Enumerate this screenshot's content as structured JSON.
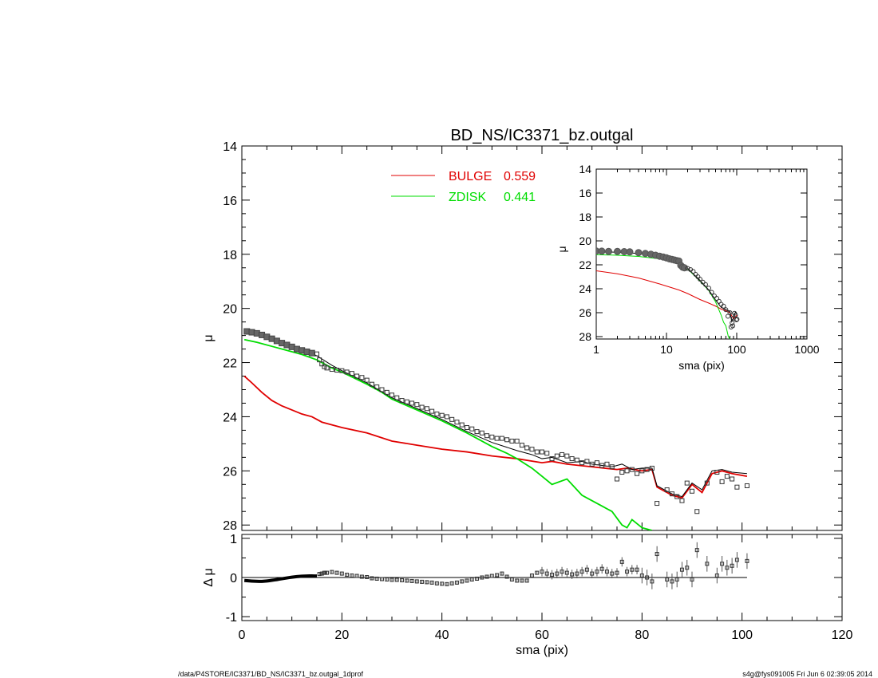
{
  "title": "BD_NS/IC3371_bz.outgal",
  "footer_left": "/data/P4STORE/IC3371/BD_NS/IC3371_bz.outgal_1dprof",
  "footer_right": "s4g@fys091005  Fri Jun  6 02:39:05 2014",
  "chart_data": [
    {
      "id": "main",
      "type": "line",
      "title": "BD_NS/IC3371_bz.outgal",
      "xlabel": "",
      "ylabel": "μ",
      "xlim": [
        0,
        120
      ],
      "ylim": [
        28.2,
        14
      ],
      "y_inverted": true,
      "xticks": [
        0,
        20,
        40,
        60,
        80,
        100,
        120
      ],
      "yticks": [
        14,
        16,
        18,
        20,
        22,
        24,
        26,
        28
      ],
      "legend": {
        "placement": "top-center",
        "entries": [
          {
            "label": "BULGE",
            "value": "0.559",
            "color": "#e00000"
          },
          {
            "label": "ZDISK",
            "value": "0.441",
            "color": "#00dd00"
          }
        ]
      },
      "series": [
        {
          "name": "BULGE",
          "kind": "line",
          "color": "#e00000",
          "x": [
            0.5,
            2,
            4,
            6,
            8,
            10,
            12,
            14,
            15,
            16,
            18,
            20,
            25,
            30,
            35,
            40,
            45,
            50,
            55,
            60,
            62,
            65,
            70,
            75,
            77,
            80,
            82,
            83,
            85,
            86,
            88,
            90,
            92,
            94,
            96,
            98,
            101
          ],
          "y": [
            22.5,
            22.75,
            23.1,
            23.4,
            23.6,
            23.75,
            23.9,
            24.0,
            24.1,
            24.2,
            24.3,
            24.4,
            24.6,
            24.9,
            25.05,
            25.2,
            25.3,
            25.45,
            25.55,
            25.7,
            25.65,
            25.75,
            25.85,
            25.95,
            25.9,
            26.0,
            25.95,
            26.6,
            26.8,
            26.9,
            27.0,
            26.5,
            26.8,
            26.1,
            26.0,
            26.1,
            26.2
          ]
        },
        {
          "name": "ZDISK",
          "kind": "line",
          "color": "#00dd00",
          "x": [
            0.5,
            3,
            6,
            9,
            12,
            15,
            18,
            20,
            25,
            28,
            30,
            35,
            40,
            45,
            50,
            53,
            55,
            58,
            60,
            62,
            65,
            68,
            70,
            72,
            74,
            76,
            77,
            78,
            80,
            82
          ],
          "y": [
            21.15,
            21.25,
            21.4,
            21.55,
            21.7,
            21.9,
            22.2,
            22.35,
            22.8,
            23.1,
            23.35,
            23.75,
            24.15,
            24.6,
            25.1,
            25.35,
            25.55,
            25.9,
            26.2,
            26.5,
            26.3,
            26.9,
            27.1,
            27.3,
            27.5,
            28.0,
            28.1,
            27.8,
            28.1,
            28.2
          ]
        },
        {
          "name": "",
          "kind": "line",
          "color": "#000000",
          "x": [
            0.5,
            3,
            6,
            9,
            12,
            15,
            18,
            20,
            25,
            30,
            35,
            40,
            45,
            50,
            55,
            58,
            60,
            62,
            65,
            68,
            70,
            72,
            74,
            76,
            78,
            80,
            82,
            83,
            85,
            86,
            88,
            90,
            92,
            94,
            96,
            98,
            101
          ],
          "y": [
            20.9,
            21.0,
            21.1,
            21.3,
            21.5,
            21.75,
            22.1,
            22.3,
            22.75,
            23.3,
            23.7,
            24.1,
            24.55,
            24.95,
            25.25,
            25.4,
            25.55,
            25.5,
            25.7,
            25.65,
            25.75,
            25.8,
            25.85,
            25.75,
            25.95,
            25.9,
            25.9,
            26.55,
            26.75,
            26.85,
            26.95,
            26.45,
            26.7,
            26.0,
            25.95,
            26.05,
            26.1
          ]
        },
        {
          "name": "",
          "kind": "points",
          "color": "#000000",
          "x": [
            1,
            2,
            3,
            4,
            5,
            6,
            7,
            8,
            9,
            10,
            11,
            12,
            13,
            14,
            15,
            15.5,
            16,
            16.5,
            17,
            18,
            19,
            20,
            21,
            22,
            23,
            24,
            25,
            26,
            27,
            28,
            29,
            30,
            31,
            32,
            33,
            34,
            35,
            36,
            37,
            38,
            39,
            40,
            41,
            42,
            43,
            44,
            45,
            46,
            47,
            48,
            49,
            50,
            51,
            52,
            53,
            54,
            55,
            56,
            57,
            58,
            59,
            60,
            61,
            62,
            63,
            64,
            65,
            66,
            67,
            68,
            69,
            70,
            71,
            72,
            73,
            74,
            75,
            76,
            77,
            78,
            79,
            80,
            81,
            82,
            83,
            85,
            86,
            87,
            88,
            89,
            90,
            91,
            93,
            95,
            96,
            97,
            98,
            99,
            101
          ],
          "y": [
            20.85,
            20.88,
            20.92,
            20.98,
            21.05,
            21.12,
            21.2,
            21.28,
            21.35,
            21.42,
            21.5,
            21.55,
            21.6,
            21.65,
            21.68,
            21.9,
            22.05,
            22.15,
            22.2,
            22.25,
            22.28,
            22.3,
            22.35,
            22.4,
            22.5,
            22.55,
            22.65,
            22.8,
            22.9,
            23.0,
            23.1,
            23.2,
            23.3,
            23.4,
            23.45,
            23.5,
            23.55,
            23.65,
            23.7,
            23.8,
            23.9,
            23.95,
            24.0,
            24.1,
            24.2,
            24.3,
            24.4,
            24.45,
            24.55,
            24.6,
            24.7,
            24.75,
            24.8,
            24.8,
            24.85,
            24.9,
            24.9,
            25.05,
            25.15,
            25.2,
            25.3,
            25.3,
            25.35,
            25.55,
            25.45,
            25.4,
            25.45,
            25.55,
            25.6,
            25.7,
            25.65,
            25.75,
            25.7,
            25.8,
            25.75,
            25.85,
            26.3,
            26.05,
            26.0,
            25.95,
            26.1,
            26.0,
            25.95,
            25.9,
            27.2,
            26.7,
            26.85,
            26.95,
            27.1,
            26.45,
            26.75,
            27.5,
            26.45,
            26.05,
            26.4,
            26.2,
            26.3,
            26.6,
            26.55
          ]
        }
      ]
    },
    {
      "id": "residual",
      "type": "scatter",
      "xlabel": "sma (pix)",
      "ylabel": "Δ μ",
      "xlim": [
        0,
        120
      ],
      "ylim": [
        -1.1,
        1.1
      ],
      "xticks": [
        0,
        20,
        40,
        60,
        80,
        100,
        120
      ],
      "yticks": [
        -1,
        0,
        1
      ],
      "reference_line": 0,
      "points": {
        "x": [
          15.5,
          16,
          16.5,
          17,
          18,
          19,
          20,
          21,
          22,
          23,
          24,
          25,
          26,
          27,
          28,
          29,
          30,
          31,
          32,
          33,
          34,
          35,
          36,
          37,
          38,
          39,
          40,
          41,
          42,
          43,
          44,
          45,
          46,
          47,
          48,
          49,
          50,
          51,
          52,
          53,
          54,
          55,
          56,
          57,
          58,
          59,
          60,
          61,
          62,
          63,
          64,
          65,
          66,
          67,
          68,
          69,
          70,
          71,
          72,
          73,
          74,
          75,
          76,
          77,
          78,
          79,
          80,
          81,
          82,
          83,
          85,
          86,
          87,
          88,
          89,
          90,
          91,
          93,
          95,
          96,
          97,
          98,
          99,
          101
        ],
        "y": [
          0.09,
          0.1,
          0.12,
          0.12,
          0.14,
          0.12,
          0.1,
          0.07,
          0.05,
          0.04,
          0.02,
          0.01,
          -0.02,
          -0.03,
          -0.04,
          -0.05,
          -0.06,
          -0.06,
          -0.07,
          -0.08,
          -0.09,
          -0.1,
          -0.11,
          -0.12,
          -0.13,
          -0.15,
          -0.16,
          -0.17,
          -0.15,
          -0.13,
          -0.1,
          -0.08,
          -0.05,
          -0.03,
          0.0,
          0.02,
          0.04,
          0.06,
          0.1,
          0.02,
          -0.05,
          -0.08,
          -0.08,
          -0.08,
          0.05,
          0.12,
          0.15,
          0.1,
          0.07,
          0.1,
          0.15,
          0.12,
          0.08,
          0.1,
          0.15,
          0.2,
          0.1,
          0.15,
          0.22,
          0.15,
          0.1,
          0.12,
          0.4,
          0.15,
          0.2,
          0.2,
          0.05,
          0.0,
          -0.1,
          0.6,
          -0.05,
          -0.1,
          -0.05,
          0.2,
          0.25,
          -0.05,
          0.7,
          0.35,
          0.05,
          0.35,
          0.25,
          0.3,
          0.45,
          0.42
        ]
      }
    },
    {
      "id": "inset",
      "type": "line",
      "xlabel": "sma (pix)",
      "ylabel": "μ",
      "x_scale": "log",
      "xlim": [
        1,
        1000
      ],
      "ylim": [
        28.2,
        14
      ],
      "xticks": [
        1,
        10,
        100,
        1000
      ],
      "xticklabels": [
        "1",
        "10",
        "100",
        "1000"
      ],
      "yticks": [
        14,
        16,
        18,
        20,
        22,
        24,
        26,
        28
      ],
      "series": [
        {
          "name": "BULGE",
          "kind": "line",
          "color": "#e00000",
          "x": [
            1,
            2,
            4,
            8,
            15,
            20,
            30,
            40,
            50,
            60,
            70,
            80,
            90,
            101
          ],
          "y": [
            22.5,
            22.75,
            23.1,
            23.6,
            24.1,
            24.4,
            24.9,
            25.2,
            25.45,
            25.7,
            25.85,
            26.0,
            26.5,
            26.2
          ]
        },
        {
          "name": "ZDISK",
          "kind": "line",
          "color": "#00dd00",
          "x": [
            1,
            2,
            4,
            8,
            15,
            20,
            30,
            40,
            50,
            60,
            65,
            70,
            76,
            80
          ],
          "y": [
            21.15,
            21.2,
            21.3,
            21.5,
            21.9,
            22.35,
            23.35,
            24.15,
            25.1,
            26.2,
            26.8,
            27.1,
            28.0,
            28.2
          ]
        },
        {
          "name": "",
          "kind": "line",
          "color": "#000000",
          "x": [
            1,
            2,
            4,
            8,
            15,
            20,
            30,
            40,
            50,
            60,
            70,
            80,
            85,
            90,
            96,
            101
          ],
          "y": [
            20.9,
            20.95,
            21.05,
            21.25,
            21.75,
            22.3,
            23.3,
            24.1,
            24.95,
            25.55,
            25.75,
            25.9,
            26.75,
            26.45,
            25.95,
            26.1
          ]
        },
        {
          "name": "",
          "kind": "points",
          "color": "#000000",
          "x": [
            1,
            1.2,
            1.5,
            2,
            2.5,
            3,
            4,
            5,
            6,
            7,
            8,
            9,
            10,
            11,
            12,
            13,
            14,
            15,
            16,
            17,
            18,
            20,
            22,
            24,
            26,
            28,
            30,
            33,
            36,
            40,
            44,
            48,
            52,
            56,
            60,
            65,
            70,
            75,
            80,
            83,
            86,
            88,
            90,
            93,
            96,
            99,
            101
          ],
          "y": [
            20.85,
            20.86,
            20.88,
            20.88,
            20.9,
            20.92,
            20.98,
            21.05,
            21.12,
            21.2,
            21.28,
            21.35,
            21.42,
            21.5,
            21.55,
            21.6,
            21.65,
            21.68,
            22.05,
            22.2,
            22.25,
            22.3,
            22.4,
            22.55,
            22.8,
            23.0,
            23.2,
            23.45,
            23.65,
            23.95,
            24.3,
            24.6,
            24.8,
            25.05,
            25.3,
            25.45,
            25.75,
            26.3,
            26.0,
            27.2,
            26.85,
            27.1,
            26.45,
            26.05,
            26.2,
            26.6,
            26.55
          ]
        }
      ]
    }
  ]
}
